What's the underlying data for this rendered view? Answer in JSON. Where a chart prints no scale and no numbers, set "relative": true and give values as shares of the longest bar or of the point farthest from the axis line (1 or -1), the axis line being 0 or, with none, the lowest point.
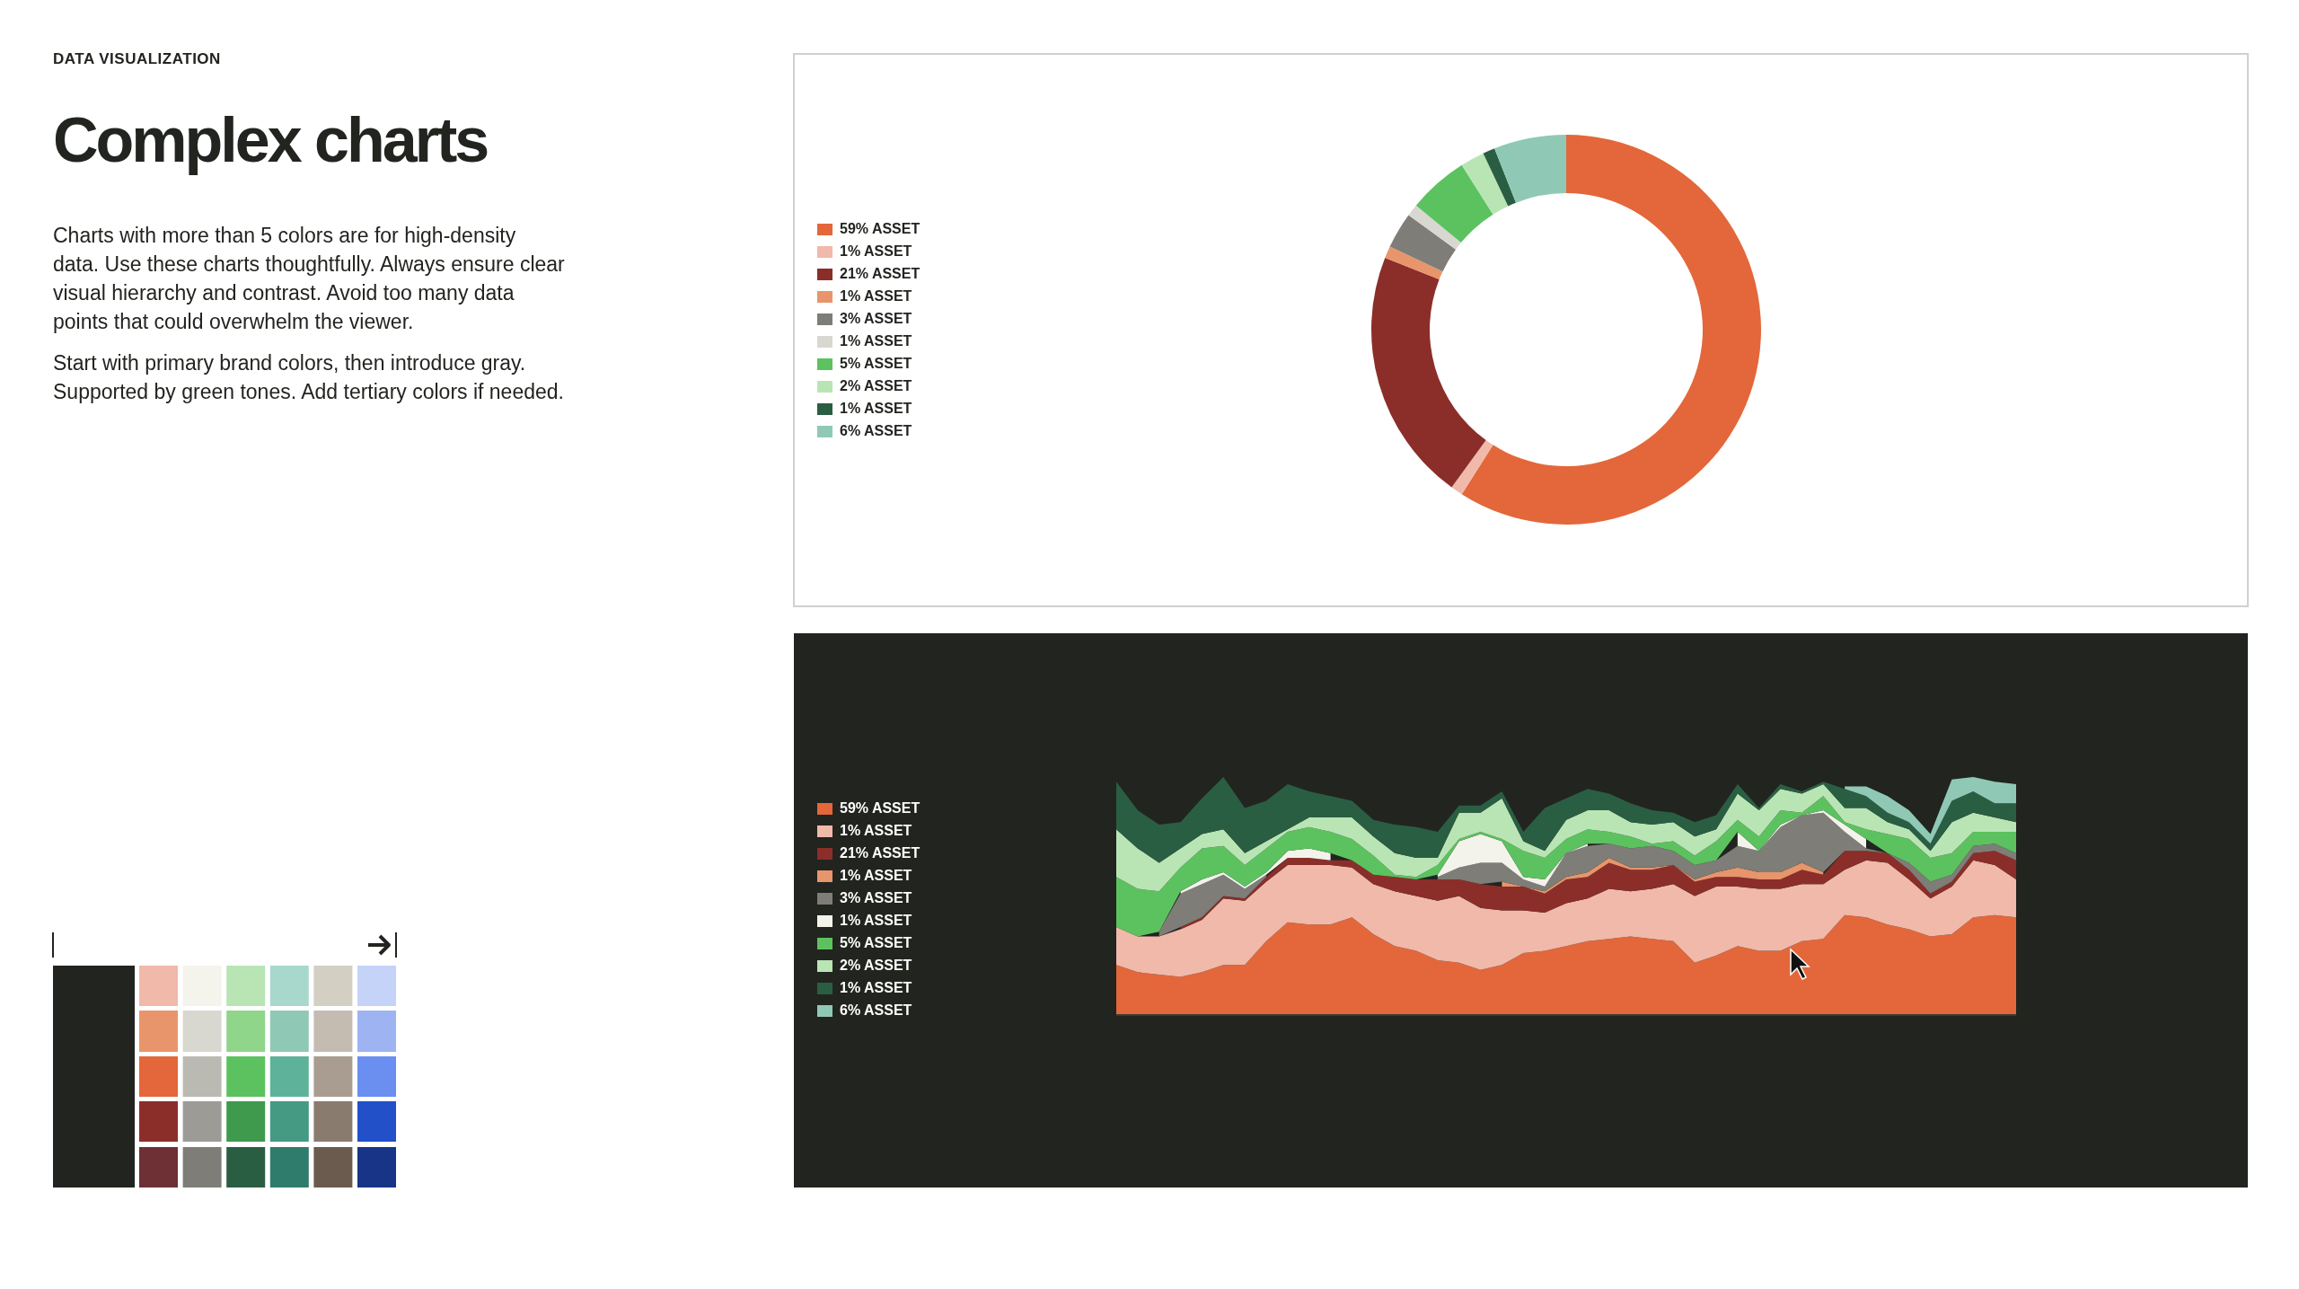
{
  "chart_data": [
    {
      "type": "other",
      "subtitle": "DATA VISUALIZATION",
      "title": "Complex charts",
      "annotations": [
        "Charts with more than 5 colors are for high-density data. Use these charts thoughtfully. Always ensure clear visual hierarchy and contrast. Avoid too many data points that could overwhelm the viewer.",
        "Start with primary brand colors, then introduce gray. Supported by green tones. Add tertiary colors if needed."
      ]
    },
    {
      "type": "donut",
      "categories": [
        "59% ASSET",
        "1% ASSET",
        "21% ASSET",
        "1% ASSET",
        "3% ASSET",
        "1% ASSET",
        "5% ASSET",
        "2% ASSET",
        "1% ASSET",
        "6% ASSET"
      ],
      "values": [
        59,
        1,
        21,
        1,
        3,
        1,
        5,
        2,
        1,
        6
      ],
      "colors": [
        "#e3673a",
        "#f0b9aa",
        "#8b2e2a",
        "#e8956b",
        "#7e7d78",
        "#d8d7d0",
        "#5cc25f",
        "#b9e5b5",
        "#2a5e43",
        "#8fc9b5"
      ],
      "legend": "left"
    },
    {
      "type": "area",
      "stacked": true,
      "relative": true,
      "legend": "left",
      "categories": [
        null,
        null,
        null,
        null,
        null,
        null,
        null,
        null,
        null,
        null,
        null,
        null,
        null,
        null,
        null,
        null,
        null,
        null,
        null,
        null,
        null,
        null,
        null,
        null,
        null,
        null,
        null,
        null,
        null,
        null,
        null,
        null,
        null,
        null,
        null,
        null,
        null,
        null,
        null,
        null,
        null,
        null,
        null
      ],
      "series": [
        {
          "name": "59% ASSET",
          "color": "#e3673a",
          "values": [
            0.21,
            0.18,
            0.17,
            0.16,
            0.18,
            0.21,
            0.21,
            0.31,
            0.39,
            0.38,
            0.38,
            0.41,
            0.34,
            0.29,
            0.27,
            0.23,
            0.22,
            0.19,
            0.21,
            0.26,
            0.27,
            0.29,
            0.31,
            0.32,
            0.33,
            0.32,
            0.31,
            0.22,
            0.25,
            0.29,
            0.27,
            0.27,
            0.31,
            0.32,
            0.42,
            0.41,
            0.38,
            0.36,
            0.33,
            0.34,
            0.41,
            0.42,
            0.41
          ]
        },
        {
          "name": "1% ASSET",
          "color": "#f0b9aa",
          "values": [
            0.16,
            0.15,
            0.16,
            0.2,
            0.22,
            0.28,
            0.27,
            0.25,
            0.24,
            0.25,
            0.25,
            0.21,
            0.21,
            0.23,
            0.23,
            0.25,
            0.28,
            0.26,
            0.23,
            0.18,
            0.16,
            0.18,
            0.18,
            0.21,
            0.19,
            0.21,
            0.24,
            0.28,
            0.29,
            0.25,
            0.26,
            0.26,
            0.24,
            0.23,
            0.19,
            0.24,
            0.26,
            0.21,
            0.16,
            0.2,
            0.24,
            0.21,
            0.16
          ]
        },
        {
          "name": "21% ASSET",
          "color": "#8b2e2a",
          "values": [
            null,
            null,
            null,
            0.01,
            0.01,
            0.01,
            0.01,
            0.02,
            0.03,
            0.03,
            0.02,
            0.03,
            0.04,
            0.06,
            0.07,
            0.09,
            0.07,
            0.1,
            0.1,
            0.1,
            0.08,
            0.1,
            0.09,
            0.11,
            0.09,
            0.08,
            0.08,
            0.06,
            0.04,
            0.04,
            0.04,
            0.04,
            0.06,
            0.04,
            0.08,
            0.04,
            0.04,
            0.04,
            0.02,
            0.02,
            0.03,
            0.06,
            0.08
          ]
        },
        {
          "name": "1% ASSET",
          "color": "#e8956b",
          "values": [
            null,
            null,
            null,
            null,
            null,
            null,
            null,
            null,
            null,
            null,
            null,
            null,
            null,
            null,
            null,
            null,
            null,
            null,
            0.02,
            0,
            0.01,
            0.01,
            0.02,
            0.02,
            0.01,
            0.01,
            0,
            0.01,
            0.02,
            0.04,
            0.03,
            0.03,
            0.03,
            0.01,
            null,
            null,
            null,
            null,
            null,
            null,
            null,
            null,
            null
          ]
        },
        {
          "name": "3% ASSET",
          "color": "#7e7d78",
          "values": [
            null,
            null,
            0.02,
            0.14,
            0.14,
            0.09,
            0.04,
            0.01,
            null,
            null,
            null,
            null,
            null,
            null,
            null,
            0.01,
            0.05,
            0.09,
            0.08,
            0.03,
            0.02,
            0.1,
            0.11,
            0.06,
            0.08,
            0.09,
            0.06,
            0.06,
            0.05,
            0.09,
            0.09,
            0.19,
            0.2,
            0.25,
            0.08,
            0.01,
            0,
            0.03,
            0.05,
            0.03,
            0.03,
            0.03,
            0.03
          ]
        },
        {
          "name": "1% ASSET",
          "color": "#f3f3ec",
          "values": [
            null,
            null,
            null,
            0.01,
            0.02,
            0.01,
            0.01,
            0.01,
            0.03,
            0.04,
            0.03,
            null,
            null,
            null,
            null,
            0.01,
            0.11,
            0.12,
            0.09,
            0.01,
            0.03,
            0,
            0.01,
            null,
            null,
            null,
            null,
            null,
            null,
            0.06,
            0,
            0.01,
            0,
            0.01,
            0.03,
            0.04,
            null,
            null,
            null,
            null,
            null,
            null,
            null
          ]
        },
        {
          "name": "5% ASSET",
          "color": "#5cc25f",
          "values": [
            0.21,
            0.2,
            0.17,
            0.1,
            0.13,
            0.11,
            0.09,
            0.1,
            0.08,
            0.09,
            0.09,
            0.09,
            0.08,
            0.01,
            0.01,
            0.04,
            0.01,
            0.01,
            0.01,
            0.11,
            0.09,
            0.06,
            0.06,
            0.05,
            0.05,
            0.01,
            0.04,
            0.04,
            0.08,
            0.05,
            0.06,
            0.06,
            0.01,
            0.06,
            0.01,
            0.04,
            0.08,
            0.1,
            0.1,
            0.09,
            0.06,
            0.05,
            0.09
          ]
        },
        {
          "name": "2% ASSET",
          "color": "#b9e5b5",
          "values": [
            0.2,
            0.17,
            0.12,
            0.08,
            0.06,
            0.07,
            0.05,
            0.03,
            0.01,
            0.04,
            0.06,
            0.09,
            0.08,
            0.09,
            0.08,
            0.03,
            0.11,
            0.08,
            0.17,
            0.04,
            0.03,
            0.08,
            0.08,
            0.09,
            0.06,
            0.08,
            0.08,
            0.08,
            0.05,
            0.11,
            0.11,
            0.09,
            0.08,
            0.05,
            0.06,
            0.09,
            0.05,
            0.04,
            0.03,
            0.13,
            0.08,
            0.06,
            0.04
          ]
        },
        {
          "name": "1% ASSET",
          "color": "#2a5e43",
          "values": [
            0.2,
            0.16,
            0.16,
            0.11,
            0.15,
            0.22,
            0.19,
            0.17,
            0.19,
            0.11,
            0.09,
            0.07,
            0.07,
            0.12,
            0.13,
            0.11,
            0.03,
            0.03,
            0.03,
            0.04,
            0.18,
            0.09,
            0.09,
            0.07,
            0.08,
            0.06,
            0.04,
            0.06,
            0.06,
            0.04,
            0.01,
            0.02,
            0.01,
            0.01,
            0.08,
            0.05,
            0.04,
            0.03,
            0.03,
            0.09,
            0.09,
            0.06,
            0.08
          ]
        },
        {
          "name": "6% ASSET",
          "color": "#8fc9b5",
          "values": [
            null,
            null,
            null,
            null,
            null,
            null,
            null,
            null,
            null,
            null,
            null,
            null,
            null,
            null,
            null,
            null,
            null,
            null,
            null,
            null,
            null,
            null,
            null,
            null,
            null,
            null,
            null,
            null,
            null,
            null,
            null,
            null,
            null,
            null,
            0.01,
            0.04,
            0.07,
            0.05,
            0.04,
            0.09,
            0.06,
            0.09,
            0.08
          ]
        }
      ]
    }
  ]
}
